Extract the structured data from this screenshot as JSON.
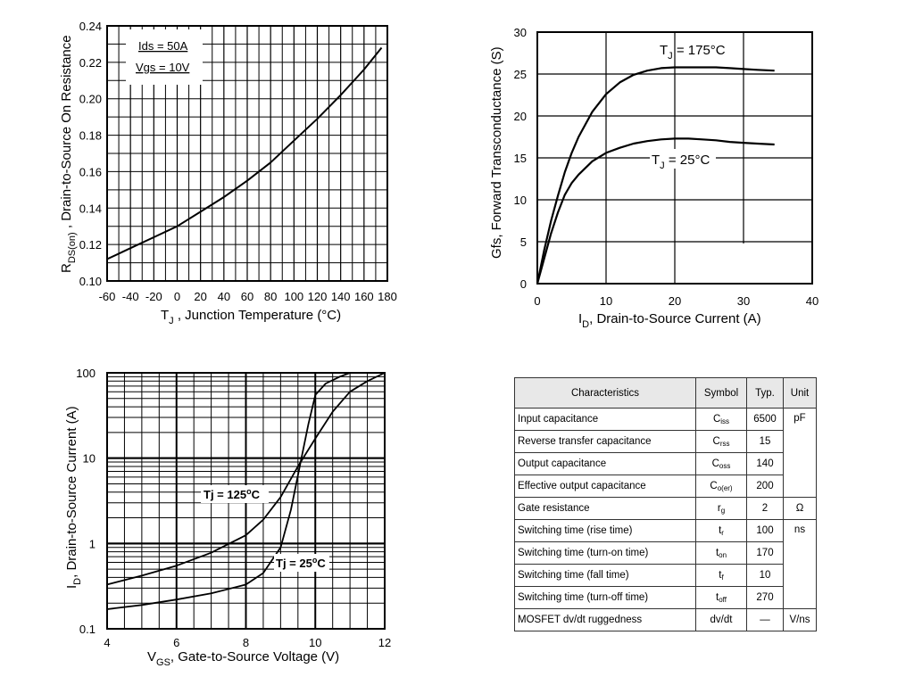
{
  "chart_data": [
    {
      "type": "line",
      "xlabel_main": "T",
      "xlabel_sub": "J",
      "xlabel_rest": " , Junction Temperature (°C)",
      "ylabel_main": "R",
      "ylabel_sub": "DS(on)",
      "ylabel_rest": " , Drain-to-Source On Resistance",
      "xlim": [
        -60,
        180
      ],
      "ylim": [
        0.1,
        0.24
      ],
      "xticks": [
        "-60",
        "-40",
        "-20",
        "0",
        "20",
        "40",
        "60",
        "80",
        "100",
        "120",
        "140",
        "160",
        "180"
      ],
      "yticks": [
        "0.10",
        "0.12",
        "0.14",
        "0.16",
        "0.18",
        "0.20",
        "0.22",
        "0.24"
      ],
      "annotations": [
        "Ids = 50A",
        "Vgs = 10V"
      ],
      "series": [
        {
          "x": [
            -60,
            -40,
            -20,
            0,
            20,
            40,
            60,
            80,
            100,
            120,
            140,
            160,
            175
          ],
          "y": [
            0.112,
            0.118,
            0.124,
            0.13,
            0.138,
            0.146,
            0.155,
            0.165,
            0.177,
            0.189,
            0.202,
            0.216,
            0.228
          ]
        }
      ]
    },
    {
      "type": "line",
      "xlabel_main": "I",
      "xlabel_sub": "D",
      "xlabel_rest": ", Drain-to-Source Current (A)",
      "ylabel": "Gfs, Forward Transconductance (S)",
      "xlim": [
        0,
        40
      ],
      "ylim": [
        0,
        30
      ],
      "xticks": [
        "0",
        "10",
        "20",
        "30",
        "40"
      ],
      "yticks": [
        "0",
        "5",
        "10",
        "15",
        "20",
        "25",
        "30"
      ],
      "series": [
        {
          "name_main": "T",
          "name_sub": "J",
          "name_rest": " = 175°C",
          "x": [
            0,
            1,
            2,
            3,
            4,
            5,
            6,
            8,
            10,
            12,
            14,
            16,
            18,
            20,
            22,
            24,
            26,
            28,
            30,
            32,
            34.5
          ],
          "y": [
            0,
            4,
            7.5,
            10.5,
            13.3,
            15.6,
            17.5,
            20.5,
            22.6,
            24,
            24.9,
            25.4,
            25.7,
            25.8,
            25.8,
            25.8,
            25.8,
            25.7,
            25.6,
            25.5,
            25.4
          ]
        },
        {
          "name_main": "T",
          "name_sub": "J",
          "name_rest": " = 25°C",
          "x": [
            0,
            1,
            2,
            3,
            4,
            5,
            6,
            8,
            10,
            12,
            14,
            16,
            18,
            20,
            22,
            24,
            26,
            28,
            30,
            32,
            34.5
          ],
          "y": [
            0,
            3,
            6,
            8.5,
            10.6,
            12,
            13,
            14.6,
            15.6,
            16.2,
            16.7,
            17,
            17.2,
            17.3,
            17.3,
            17.2,
            17.1,
            16.9,
            16.8,
            16.7,
            16.6
          ]
        }
      ]
    },
    {
      "type": "line",
      "yscale": "log",
      "xlabel_main": "V",
      "xlabel_sub": "GS",
      "xlabel_rest": ", Gate-to-Source Voltage (V)",
      "ylabel_main": "I",
      "ylabel_sub": "D",
      "ylabel_rest": ",  Drain-to-Source Current (A)",
      "xlim": [
        4,
        12
      ],
      "ylim": [
        0.1,
        100
      ],
      "xticks": [
        "4",
        "6",
        "8",
        "10",
        "12"
      ],
      "yticks": [
        "0.1",
        "1",
        "10",
        "100"
      ],
      "series": [
        {
          "name_main": "Tj = 125",
          "name_sup": "o",
          "name_rest": "C",
          "x": [
            4,
            5,
            6,
            7,
            8,
            8.5,
            9,
            9.5,
            10,
            10.5,
            11,
            11.5,
            12
          ],
          "y": [
            0.33,
            0.42,
            0.55,
            0.78,
            1.25,
            1.9,
            3.5,
            8,
            17,
            35,
            60,
            80,
            100
          ]
        },
        {
          "name_main": "Tj = 25",
          "name_sup": "o",
          "name_rest": "C",
          "x": [
            4,
            5,
            6,
            7,
            8,
            8.5,
            9,
            9.3,
            9.6,
            9.8,
            10,
            10.3,
            10.7,
            11
          ],
          "y": [
            0.17,
            0.19,
            0.22,
            0.26,
            0.33,
            0.45,
            0.9,
            2.5,
            10,
            25,
            55,
            75,
            90,
            100
          ]
        }
      ]
    },
    {
      "type": "table",
      "headers": [
        "Characteristics",
        "Symbol",
        "Typ.",
        "Unit"
      ],
      "rows": [
        {
          "name": "Input capacitance",
          "sym": "C",
          "sub": "iss",
          "typ": "6500",
          "unit": "pF"
        },
        {
          "name": "Reverse transfer capacitance",
          "sym": "C",
          "sub": "rss",
          "typ": "15",
          "unit": ""
        },
        {
          "name": "Output capacitance",
          "sym": "C",
          "sub": "oss",
          "typ": "140",
          "unit": ""
        },
        {
          "name": "Effective output capacitance",
          "sym": "C",
          "sub": "o(er)",
          "typ": "200",
          "unit": ""
        },
        {
          "name": "Gate resistance",
          "sym": "r",
          "sub": "g",
          "typ": "2",
          "unit": "Ω"
        },
        {
          "name": "Switching time (rise time)",
          "sym": "t",
          "sub": "r",
          "typ": "100",
          "unit": "ns"
        },
        {
          "name": "Switching time (turn-on time)",
          "sym": "t",
          "sub": "on",
          "typ": "170",
          "unit": ""
        },
        {
          "name": "Switching time (fall time)",
          "sym": "t",
          "sub": "f",
          "typ": "10",
          "unit": ""
        },
        {
          "name": "Switching time (turn-off time)",
          "sym": "t",
          "sub": "off",
          "typ": "270",
          "unit": ""
        },
        {
          "name": "MOSFET dv/dt ruggedness",
          "sym": "dv/dt",
          "sub": "",
          "typ": "—",
          "unit": "V/ns"
        }
      ]
    }
  ]
}
